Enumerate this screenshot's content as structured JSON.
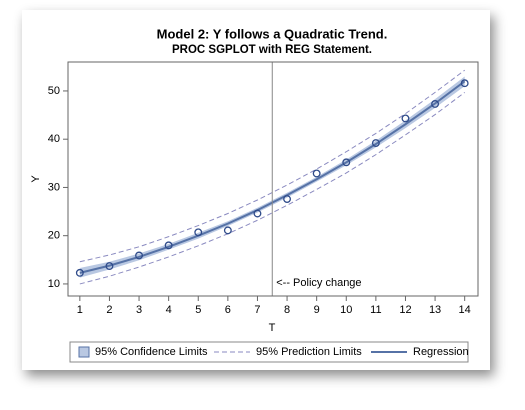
{
  "chart_data": {
    "type": "regression-fit",
    "title": "Model 2: Y follows a Quadratic Trend.",
    "subtitle": "PROC SGPLOT with REG Statement.",
    "x_label": "T",
    "y_label": "Y",
    "x": [
      1,
      2,
      3,
      4,
      5,
      6,
      7,
      8,
      9,
      10,
      11,
      12,
      13,
      14
    ],
    "values": [
      12.3,
      13.7,
      15.9,
      18.0,
      20.7,
      21.1,
      24.6,
      27.6,
      32.9,
      35.2,
      39.2,
      44.3,
      47.3,
      51.6
    ],
    "point_color": "#2f4b8a",
    "regression": {
      "name": "Regression",
      "color": "#5672a6",
      "values": [
        12.3,
        13.8,
        15.6,
        17.7,
        20.0,
        22.5,
        25.3,
        28.4,
        31.7,
        35.2,
        39.0,
        43.1,
        47.4,
        52.0
      ]
    },
    "confidence_limits": {
      "name": "95% Confidence Limits",
      "color": "#b9c8e2",
      "lower": [
        11.3,
        13.0,
        14.9,
        17.1,
        19.4,
        22.0,
        24.8,
        27.9,
        31.2,
        34.6,
        38.3,
        42.3,
        46.5,
        51.0
      ],
      "upper": [
        13.3,
        14.6,
        16.3,
        18.3,
        20.6,
        23.0,
        25.8,
        28.9,
        32.2,
        35.8,
        39.7,
        43.9,
        48.3,
        53.0
      ]
    },
    "prediction_limits": {
      "name": "95% Prediction Limits",
      "color": "#8a8ac0",
      "lower": [
        10.0,
        11.6,
        13.5,
        15.6,
        17.9,
        20.4,
        23.2,
        26.3,
        29.6,
        33.0,
        36.8,
        40.9,
        45.1,
        49.7
      ],
      "upper": [
        14.6,
        16.0,
        17.7,
        19.8,
        22.1,
        24.6,
        27.4,
        30.5,
        33.8,
        37.4,
        41.2,
        45.3,
        49.7,
        54.3
      ]
    },
    "reference_line": {
      "x": 7.5,
      "label": "<-- Policy change"
    },
    "xlim": [
      0.6,
      14.45
    ],
    "ylim": [
      7.5,
      56
    ],
    "xticks": [
      1,
      2,
      3,
      4,
      5,
      6,
      7,
      8,
      9,
      10,
      11,
      12,
      13,
      14
    ],
    "yticks": [
      10,
      20,
      30,
      40,
      50
    ]
  }
}
